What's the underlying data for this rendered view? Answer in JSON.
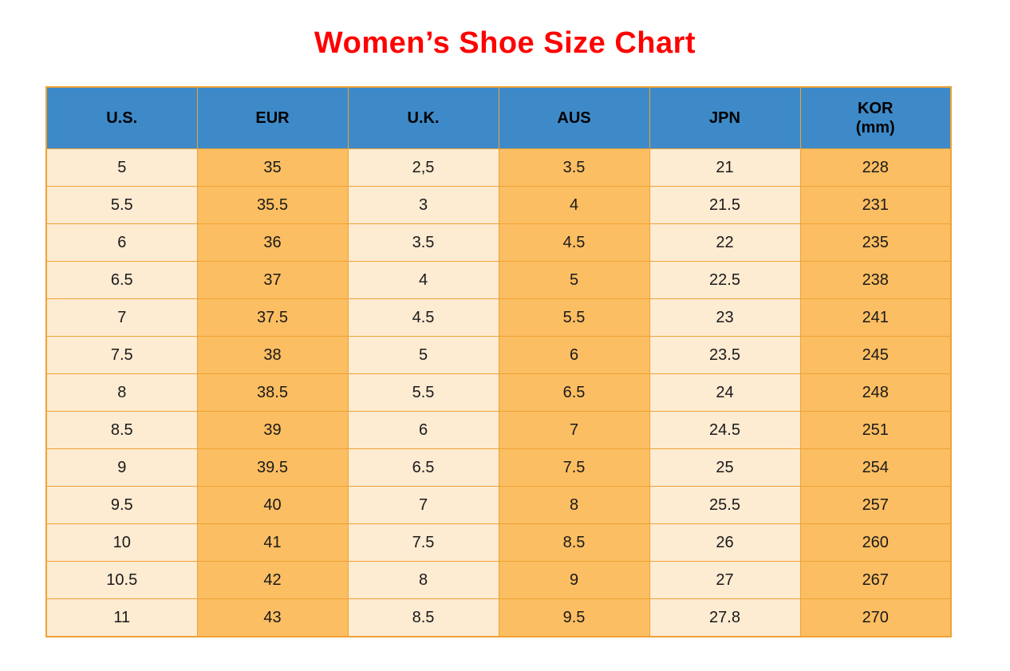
{
  "title": {
    "text": "Women’s Shoe Size Chart",
    "color": "#ff0000"
  },
  "chart_data": {
    "type": "table",
    "title": "Women’s Shoe Size Chart",
    "columns": [
      "U.S.",
      "EUR",
      "U.K.",
      "AUS",
      "JPN",
      "KOR (mm)"
    ],
    "rows": [
      [
        "5",
        "35",
        "2,5",
        "3.5",
        "21",
        "228"
      ],
      [
        "5.5",
        "35.5",
        "3",
        "4",
        "21.5",
        "231"
      ],
      [
        "6",
        "36",
        "3.5",
        "4.5",
        "22",
        "235"
      ],
      [
        "6.5",
        "37",
        "4",
        "5",
        "22.5",
        "238"
      ],
      [
        "7",
        "37.5",
        "4.5",
        "5.5",
        "23",
        "241"
      ],
      [
        "7.5",
        "38",
        "5",
        "6",
        "23.5",
        "245"
      ],
      [
        "8",
        "38.5",
        "5.5",
        "6.5",
        "24",
        "248"
      ],
      [
        "8.5",
        "39",
        "6",
        "7",
        "24.5",
        "251"
      ],
      [
        "9",
        "39.5",
        "6.5",
        "7.5",
        "25",
        "254"
      ],
      [
        "9.5",
        "40",
        "7",
        "8",
        "25.5",
        "257"
      ],
      [
        "10",
        "41",
        "7.5",
        "8.5",
        "26",
        "260"
      ],
      [
        "10.5",
        "42",
        "8",
        "9",
        "27",
        "267"
      ],
      [
        "11",
        "43",
        "8.5",
        "9.5",
        "27.8",
        "270"
      ]
    ]
  },
  "table": {
    "headers": [
      {
        "line1": "U.S."
      },
      {
        "line1": "EUR"
      },
      {
        "line1": "U.K."
      },
      {
        "line1": "AUS"
      },
      {
        "line1": "JPN"
      },
      {
        "line1": "KOR",
        "line2": "(mm)"
      }
    ],
    "column_styles": [
      "cream",
      "orange",
      "cream",
      "orange",
      "cream",
      "orange"
    ],
    "colors": {
      "header_bg": "#3e8ac8",
      "header_text": "#000000",
      "cell_cream": "#fdebd2",
      "cell_orange": "#fcbe62",
      "border": "#eea236",
      "cell_text": "#1a1a1a",
      "title": "#ff0000",
      "background": "#ffffff"
    }
  }
}
